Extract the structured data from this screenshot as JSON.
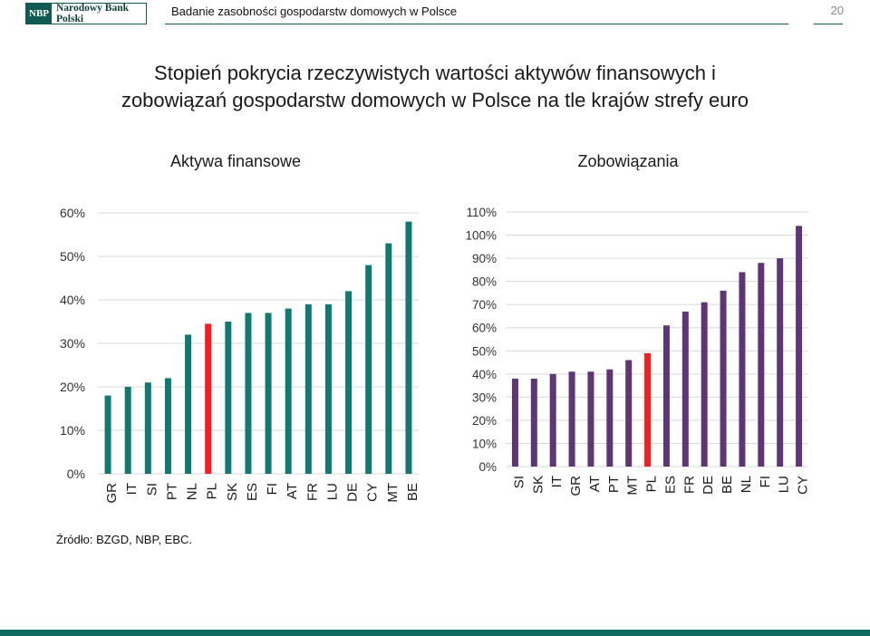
{
  "header": {
    "logo_mark": "NBP",
    "logo_text": "Narodowy Bank Polski",
    "title": "Badanie zasobności gospodarstw domowych w Polsce",
    "page_number": "20"
  },
  "slide": {
    "title_line1": "Stopień pokrycia rzeczywistych wartości aktywów finansowych i",
    "title_line2": "zobowiązań gospodarstw domowych w Polsce na tle krajów strefy euro",
    "source": "Źródło: BZGD, NBP, EBC."
  },
  "colors": {
    "brand": "#0f5a52",
    "assets_bar": "#0f7a72",
    "liabilities_bar": "#5e3577",
    "highlight": "#ff1a1a"
  },
  "chart_data": [
    {
      "type": "bar",
      "title": "Aktywa finansowe",
      "categories": [
        "GR",
        "IT",
        "SI",
        "PT",
        "NL",
        "PL",
        "SK",
        "ES",
        "FI",
        "AT",
        "FR",
        "LU",
        "DE",
        "CY",
        "MT",
        "BE"
      ],
      "values": [
        18,
        20,
        21,
        22,
        32,
        34.5,
        35,
        37,
        37,
        38,
        39,
        39,
        42,
        48,
        53,
        58
      ],
      "highlight_category": "PL",
      "ylim": [
        0,
        60
      ],
      "yticks": [
        "0%",
        "10%",
        "20%",
        "30%",
        "40%",
        "50%",
        "60%"
      ],
      "ytick_values": [
        0,
        10,
        20,
        30,
        40,
        50,
        60
      ],
      "grid": true
    },
    {
      "type": "bar",
      "title": "Zobowiązania",
      "categories": [
        "SI",
        "SK",
        "IT",
        "GR",
        "AT",
        "PT",
        "MT",
        "PL",
        "ES",
        "FR",
        "DE",
        "BE",
        "NL",
        "FI",
        "LU",
        "CY"
      ],
      "values": [
        38,
        38,
        40,
        41,
        41,
        42,
        46,
        49,
        61,
        67,
        71,
        76,
        84,
        88,
        90,
        104
      ],
      "highlight_category": "PL",
      "ylim": [
        0,
        110
      ],
      "yticks": [
        "0%",
        "10%",
        "20%",
        "30%",
        "40%",
        "50%",
        "60%",
        "70%",
        "80%",
        "90%",
        "100%",
        "110%"
      ],
      "ytick_values": [
        0,
        10,
        20,
        30,
        40,
        50,
        60,
        70,
        80,
        90,
        100,
        110
      ],
      "grid": true
    }
  ]
}
